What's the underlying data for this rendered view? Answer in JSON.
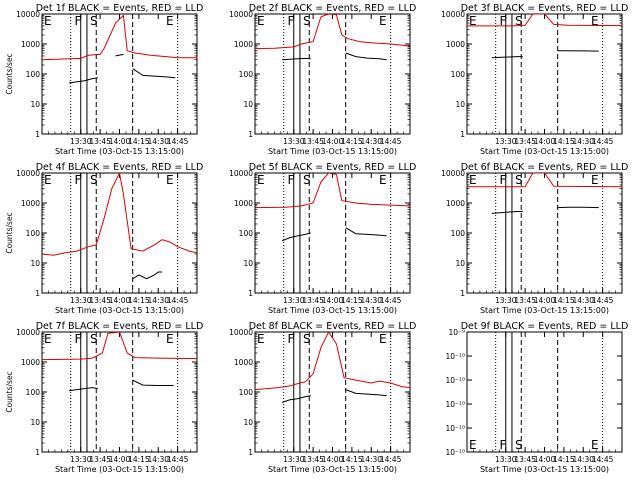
{
  "colors": {
    "background": "#ffffff",
    "axes": "#000000",
    "events": "#000000",
    "lld": "#e00000"
  },
  "xaxis": {
    "label": "Start Time (03-Oct-15 13:15:00)",
    "ticks": [
      "13:30",
      "13:45",
      "14:00",
      "14:15",
      "14:30",
      "14:45"
    ]
  },
  "chart_data": [
    {
      "type": "line",
      "title": "Det 1f BLACK = Events, RED = LLD",
      "ylabel": "Counts/sec",
      "yscale": "log",
      "ylim": [
        1,
        10000
      ],
      "ytick_labels": [
        "1",
        "10",
        "100",
        "1000",
        "10000"
      ],
      "markers": {
        "E_left": "E",
        "F": "F",
        "S": "S",
        "E_right": "E"
      },
      "series": [
        {
          "color": "red",
          "segments": [
            [
              [
                13.0,
                300
              ],
              [
                13.5,
                330
              ],
              [
                13.6,
                420
              ],
              [
                13.75,
                450
              ],
              [
                13.8,
                700
              ],
              [
                13.95,
                5000
              ],
              [
                14.05,
                9000
              ],
              [
                14.1,
                600
              ],
              [
                14.2,
                500
              ],
              [
                14.4,
                420
              ],
              [
                14.6,
                380
              ],
              [
                14.75,
                350
              ],
              [
                15.0,
                350
              ]
            ]
          ]
        },
        {
          "color": "black",
          "segments": [
            [
              [
                13.35,
                50
              ],
              [
                13.45,
                55
              ],
              [
                13.55,
                60
              ],
              [
                13.65,
                70
              ],
              [
                13.72,
                75
              ]
            ],
            [
              [
                13.95,
                400
              ],
              [
                14.05,
                450
              ]
            ],
            [
              [
                14.17,
                150
              ],
              [
                14.3,
                90
              ],
              [
                14.45,
                85
              ],
              [
                14.6,
                80
              ],
              [
                14.72,
                75
              ]
            ]
          ]
        }
      ]
    },
    {
      "type": "line",
      "title": "Det 2f BLACK = Events, RED = LLD",
      "ylabel": "",
      "yscale": "log",
      "ylim": [
        1,
        10000
      ],
      "ytick_labels": [
        "1",
        "10",
        "100",
        "1000",
        "10000"
      ],
      "markers": {
        "E_left": "E",
        "F": "F",
        "S": "S",
        "E_right": "E"
      },
      "series": [
        {
          "color": "red",
          "segments": [
            [
              [
                13.0,
                700
              ],
              [
                13.25,
                720
              ],
              [
                13.5,
                800
              ],
              [
                13.6,
                1000
              ],
              [
                13.75,
                1200
              ],
              [
                13.85,
                8000
              ],
              [
                13.95,
                10000
              ],
              [
                14.05,
                9500
              ],
              [
                14.12,
                2000
              ],
              [
                14.2,
                1500
              ],
              [
                14.35,
                1200
              ],
              [
                14.5,
                1100
              ],
              [
                14.75,
                1000
              ],
              [
                14.92,
                900
              ],
              [
                15.0,
                850
              ]
            ]
          ]
        },
        {
          "color": "black",
          "segments": [
            [
              [
                13.35,
                300
              ],
              [
                13.45,
                310
              ],
              [
                13.55,
                320
              ],
              [
                13.65,
                330
              ],
              [
                13.72,
                320
              ]
            ],
            [
              [
                14.17,
                500
              ],
              [
                14.3,
                380
              ],
              [
                14.45,
                340
              ],
              [
                14.6,
                320
              ],
              [
                14.7,
                300
              ]
            ]
          ]
        }
      ]
    },
    {
      "type": "line",
      "title": "Det 3f BLACK = Events, RED = LLD",
      "ylabel": "",
      "yscale": "log",
      "ylim": [
        1,
        10000
      ],
      "ytick_labels": [
        "1",
        "10",
        "100",
        "1000",
        "10000"
      ],
      "markers": {
        "E_left": "E",
        "F": "F",
        "S": "S",
        "E_right": "E"
      },
      "series": [
        {
          "color": "red",
          "segments": [
            [
              [
                13.0,
                4000
              ],
              [
                13.6,
                4000
              ],
              [
                13.75,
                4200
              ],
              [
                13.85,
                10000
              ],
              [
                14.0,
                10000
              ],
              [
                14.12,
                4500
              ],
              [
                14.3,
                4200
              ],
              [
                15.0,
                4100
              ]
            ]
          ]
        },
        {
          "color": "black",
          "segments": [
            [
              [
                13.32,
                350
              ],
              [
                13.45,
                360
              ],
              [
                13.55,
                370
              ],
              [
                13.65,
                380
              ],
              [
                13.72,
                380
              ]
            ],
            [
              [
                14.17,
                600
              ],
              [
                14.3,
                600
              ],
              [
                14.5,
                590
              ],
              [
                14.7,
                580
              ]
            ]
          ]
        }
      ]
    },
    {
      "type": "line",
      "title": "Det 4f BLACK = Events, RED = LLD",
      "ylabel": "Counts/sec",
      "yscale": "log",
      "ylim": [
        1,
        10000
      ],
      "ytick_labels": [
        "1",
        "10",
        "100",
        "1000",
        "10000"
      ],
      "markers": {
        "E_left": "E",
        "F": "F",
        "S": "S",
        "E_right": "E"
      },
      "series": [
        {
          "color": "red",
          "segments": [
            [
              [
                13.0,
                20
              ],
              [
                13.15,
                18
              ],
              [
                13.3,
                22
              ],
              [
                13.45,
                25
              ],
              [
                13.6,
                35
              ],
              [
                13.7,
                40
              ],
              [
                13.8,
                300
              ],
              [
                13.9,
                3000
              ],
              [
                14.0,
                10000
              ],
              [
                14.05,
                2000
              ],
              [
                14.15,
                30
              ],
              [
                14.3,
                25
              ],
              [
                14.45,
                40
              ],
              [
                14.55,
                60
              ],
              [
                14.65,
                50
              ],
              [
                14.75,
                35
              ],
              [
                14.9,
                25
              ],
              [
                15.0,
                22
              ]
            ]
          ]
        },
        {
          "color": "black",
          "segments": [
            [
              [
                14.17,
                3
              ],
              [
                14.25,
                4
              ],
              [
                14.35,
                3
              ],
              [
                14.45,
                4
              ],
              [
                14.5,
                5
              ],
              [
                14.55,
                5
              ]
            ]
          ]
        }
      ]
    },
    {
      "type": "line",
      "title": "Det 5f BLACK = Events, RED = LLD",
      "ylabel": "",
      "yscale": "log",
      "ylim": [
        1,
        10000
      ],
      "ytick_labels": [
        "1",
        "10",
        "100",
        "1000",
        "10000"
      ],
      "markers": {
        "E_left": "E",
        "F": "F",
        "S": "S",
        "E_right": "E"
      },
      "series": [
        {
          "color": "red",
          "segments": [
            [
              [
                13.0,
                700
              ],
              [
                13.4,
                720
              ],
              [
                13.6,
                800
              ],
              [
                13.75,
                1000
              ],
              [
                13.85,
                5000
              ],
              [
                13.95,
                10000
              ],
              [
                14.05,
                9000
              ],
              [
                14.12,
                1200
              ],
              [
                14.3,
                1000
              ],
              [
                14.5,
                900
              ],
              [
                14.75,
                850
              ],
              [
                15.0,
                800
              ]
            ]
          ]
        },
        {
          "color": "black",
          "segments": [
            [
              [
                13.35,
                55
              ],
              [
                13.45,
                70
              ],
              [
                13.55,
                80
              ],
              [
                13.65,
                90
              ],
              [
                13.72,
                100
              ]
            ],
            [
              [
                14.17,
                150
              ],
              [
                14.3,
                95
              ],
              [
                14.45,
                90
              ],
              [
                14.6,
                85
              ],
              [
                14.7,
                80
              ]
            ]
          ]
        }
      ]
    },
    {
      "type": "line",
      "title": "Det 6f BLACK = Events, RED = LLD",
      "ylabel": "",
      "yscale": "log",
      "ylim": [
        1,
        10000
      ],
      "ytick_labels": [
        "1",
        "10",
        "100",
        "1000",
        "10000"
      ],
      "markers": {
        "E_left": "E",
        "F": "F",
        "S": "S",
        "E_right": "E"
      },
      "series": [
        {
          "color": "red",
          "segments": [
            [
              [
                13.0,
                3500
              ],
              [
                13.75,
                3500
              ],
              [
                13.85,
                10000
              ],
              [
                14.0,
                10000
              ],
              [
                14.12,
                3600
              ],
              [
                15.0,
                3500
              ]
            ]
          ]
        },
        {
          "color": "black",
          "segments": [
            [
              [
                13.32,
                450
              ],
              [
                13.45,
                480
              ],
              [
                13.55,
                500
              ],
              [
                13.65,
                520
              ],
              [
                13.72,
                520
              ]
            ],
            [
              [
                14.17,
                700
              ],
              [
                14.3,
                720
              ],
              [
                14.5,
                720
              ],
              [
                14.7,
                700
              ]
            ]
          ]
        }
      ]
    },
    {
      "type": "line",
      "title": "Det 7f BLACK = Events, RED = LLD",
      "ylabel": "Counts/sec",
      "yscale": "log",
      "ylim": [
        1,
        10000
      ],
      "ytick_labels": [
        "1",
        "10",
        "100",
        "1000",
        "10000"
      ],
      "markers": {
        "E_left": "E",
        "F": "F",
        "S": "S",
        "E_right": "E"
      },
      "series": [
        {
          "color": "red",
          "segments": [
            [
              [
                13.0,
                1200
              ],
              [
                13.5,
                1250
              ],
              [
                13.65,
                1350
              ],
              [
                13.78,
                2000
              ],
              [
                13.85,
                9000
              ],
              [
                14.0,
                10000
              ],
              [
                14.1,
                2000
              ],
              [
                14.2,
                1400
              ],
              [
                14.5,
                1350
              ],
              [
                15.0,
                1300
              ]
            ]
          ]
        },
        {
          "color": "black",
          "segments": [
            [
              [
                13.35,
                110
              ],
              [
                13.45,
                120
              ],
              [
                13.55,
                130
              ],
              [
                13.65,
                140
              ],
              [
                13.72,
                130
              ]
            ],
            [
              [
                14.17,
                250
              ],
              [
                14.3,
                170
              ],
              [
                14.5,
                165
              ],
              [
                14.7,
                165
              ]
            ]
          ]
        }
      ]
    },
    {
      "type": "line",
      "title": "Det 8f BLACK = Events, RED = LLD",
      "ylabel": "",
      "yscale": "log",
      "ylim": [
        1,
        10000
      ],
      "ytick_labels": [
        "1",
        "10",
        "100",
        "1000",
        "10000"
      ],
      "markers": {
        "E_left": "E",
        "F": "F",
        "S": "S",
        "E_right": "E"
      },
      "series": [
        {
          "color": "red",
          "segments": [
            [
              [
                13.0,
                120
              ],
              [
                13.3,
                140
              ],
              [
                13.45,
                160
              ],
              [
                13.55,
                190
              ],
              [
                13.65,
                220
              ],
              [
                13.75,
                400
              ],
              [
                13.85,
                3000
              ],
              [
                13.95,
                10000
              ],
              [
                14.05,
                4000
              ],
              [
                14.15,
                300
              ],
              [
                14.3,
                250
              ],
              [
                14.5,
                200
              ],
              [
                14.6,
                230
              ],
              [
                14.75,
                200
              ],
              [
                14.9,
                150
              ],
              [
                15.0,
                140
              ]
            ]
          ]
        },
        {
          "color": "black",
          "segments": [
            [
              [
                13.35,
                45
              ],
              [
                13.45,
                55
              ],
              [
                13.55,
                60
              ],
              [
                13.65,
                70
              ],
              [
                13.72,
                75
              ]
            ],
            [
              [
                14.17,
                120
              ],
              [
                14.3,
                90
              ],
              [
                14.45,
                85
              ],
              [
                14.6,
                80
              ],
              [
                14.7,
                75
              ]
            ]
          ]
        }
      ]
    },
    {
      "type": "line",
      "title": "Det 9f BLACK = Events, RED = LLD",
      "ylabel": "",
      "yscale": "log",
      "ylim": [
        1e-10,
        1e-09
      ],
      "ytick_labels": [
        "10⁻¹⁰",
        "10⁻¹⁰",
        "10⁻¹⁰",
        "10⁻¹⁰",
        "10⁻¹⁰",
        "10⁻⁹"
      ],
      "markers": {
        "E_left": "E",
        "F": "F",
        "S": "S",
        "E_right": "E"
      },
      "series": []
    }
  ]
}
